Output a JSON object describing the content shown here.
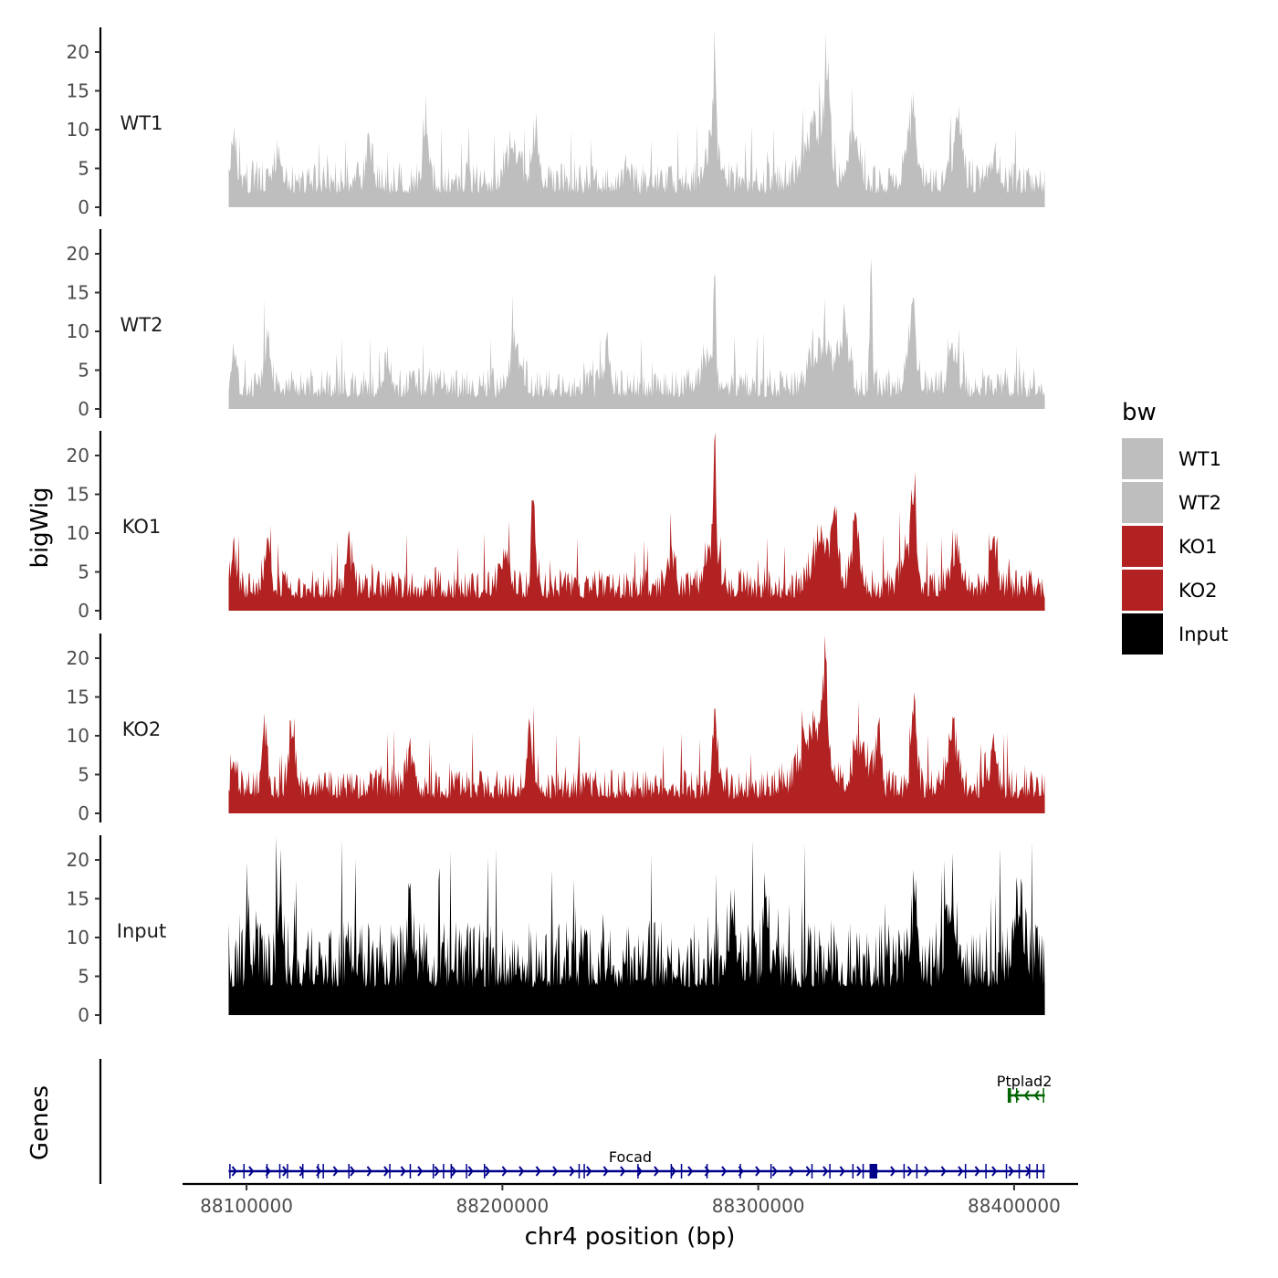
{
  "chart_data": {
    "type": "area",
    "chromosome": "chr4",
    "xlabel": "chr4 position (bp)",
    "ylabel_tracks": "bigWig",
    "ylabel_genes": "Genes",
    "xlim": [
      88075000,
      88425000
    ],
    "signal_range": [
      88093000,
      88412000
    ],
    "x_ticks": [
      88100000,
      88200000,
      88300000,
      88400000
    ],
    "x_tick_labels": [
      "88100000",
      "88200000",
      "88300000",
      "88400000"
    ],
    "ylim": [
      0,
      23
    ],
    "y_ticks": [
      0,
      5,
      10,
      15,
      20
    ],
    "y_tick_labels": [
      "0",
      "5",
      "10",
      "15",
      "20"
    ],
    "legend": {
      "title": "bw",
      "entries": [
        {
          "label": "WT1",
          "color": "#bebebe"
        },
        {
          "label": "WT2",
          "color": "#bebebe"
        },
        {
          "label": "KO1",
          "color": "#b22222"
        },
        {
          "label": "KO2",
          "color": "#b22222"
        },
        {
          "label": "Input",
          "color": "#000000"
        }
      ]
    },
    "series": [
      {
        "name": "WT1",
        "color": "#bebebe",
        "base": 1.8,
        "noise": 2.6,
        "peaks": [
          [
            88095000,
            10.5,
            1500
          ],
          [
            88112000,
            6.5,
            2500
          ],
          [
            88148000,
            7.5,
            2000
          ],
          [
            88170000,
            11.5,
            1500
          ],
          [
            88204000,
            7.5,
            4000
          ],
          [
            88213000,
            9.5,
            2000
          ],
          [
            88283000,
            18.8,
            700
          ],
          [
            88282000,
            9,
            3500
          ],
          [
            88322000,
            11,
            6000
          ],
          [
            88327000,
            16.5,
            1500
          ],
          [
            88337000,
            10,
            3000
          ],
          [
            88360000,
            12.5,
            3000
          ],
          [
            88378000,
            11,
            2500
          ],
          [
            88392000,
            5,
            3000
          ]
        ]
      },
      {
        "name": "WT2",
        "color": "#bebebe",
        "base": 1.5,
        "noise": 2.4,
        "peaks": [
          [
            88095000,
            7,
            1500
          ],
          [
            88108000,
            8.5,
            2000
          ],
          [
            88155000,
            6.5,
            1500
          ],
          [
            88205000,
            7.5,
            3500
          ],
          [
            88241000,
            10,
            1500
          ],
          [
            88283000,
            17.2,
            700
          ],
          [
            88280000,
            8,
            3000
          ],
          [
            88325000,
            8,
            6000
          ],
          [
            88334000,
            10.5,
            2500
          ],
          [
            88344000,
            17.5,
            800
          ],
          [
            88360000,
            13.5,
            2500
          ],
          [
            88376000,
            8.5,
            2500
          ]
        ]
      },
      {
        "name": "KO1",
        "color": "#b22222",
        "base": 1.6,
        "noise": 2.4,
        "peaks": [
          [
            88095000,
            7.5,
            1500
          ],
          [
            88108000,
            8,
            2000
          ],
          [
            88140000,
            9.5,
            1500
          ],
          [
            88201000,
            8,
            2500
          ],
          [
            88212000,
            14.2,
            1200
          ],
          [
            88266000,
            8.5,
            2000
          ],
          [
            88283000,
            21.8,
            600
          ],
          [
            88282000,
            9,
            3500
          ],
          [
            88325000,
            10,
            5000
          ],
          [
            88330000,
            13.5,
            1500
          ],
          [
            88338000,
            11.5,
            2500
          ],
          [
            88361000,
            15.2,
            1500
          ],
          [
            88358000,
            8.5,
            3000
          ],
          [
            88377000,
            9,
            2500
          ],
          [
            88392000,
            9.5,
            1800
          ]
        ]
      },
      {
        "name": "KO2",
        "color": "#b22222",
        "base": 1.9,
        "noise": 2.4,
        "peaks": [
          [
            88095000,
            6.5,
            1500
          ],
          [
            88107000,
            13,
            1500
          ],
          [
            88118000,
            10,
            2000
          ],
          [
            88164000,
            8.5,
            2000
          ],
          [
            88211000,
            10,
            2000
          ],
          [
            88283000,
            13.5,
            1500
          ],
          [
            88322000,
            12,
            7000
          ],
          [
            88326000,
            16.2,
            1200
          ],
          [
            88340000,
            9.5,
            4000
          ],
          [
            88347000,
            11.5,
            1500
          ],
          [
            88361000,
            15.6,
            1500
          ],
          [
            88376000,
            12.5,
            2500
          ],
          [
            88392000,
            8.5,
            2000
          ]
        ]
      },
      {
        "name": "Input",
        "color": "#000000",
        "base": 3.6,
        "noise": 5.4,
        "peaks": [
          [
            88100000,
            16.8,
            400
          ],
          [
            88113000,
            14.5,
            1500
          ],
          [
            88164000,
            12,
            1500
          ],
          [
            88290000,
            12.5,
            2000
          ],
          [
            88303000,
            14,
            1500
          ],
          [
            88361000,
            14,
            2000
          ],
          [
            88376000,
            13.5,
            2500
          ],
          [
            88402000,
            13,
            3000
          ]
        ]
      }
    ],
    "genes": [
      {
        "name": "Focad",
        "label": "Focad",
        "strand": "+",
        "color": "#00008b",
        "start": 88093000,
        "end": 88412000,
        "label_position": 88250000,
        "exons": [
          88093500,
          88099000,
          88108000,
          88113000,
          88116000,
          88122000,
          88128000,
          88130000,
          88140000,
          88156000,
          88164000,
          88173000,
          88177000,
          88180000,
          88186000,
          88193000,
          88230000,
          88232000,
          88253000,
          88266000,
          88270000,
          88280000,
          88293000,
          88305000,
          88321000,
          88328000,
          88337000,
          88341000,
          88344000,
          88357000,
          88362000,
          88381000,
          88389000,
          88397000,
          88402000,
          88406000,
          88409000,
          88411500
        ],
        "blocks": [
          [
            88343500,
            88346500
          ]
        ]
      },
      {
        "name": "Ptplad2",
        "label": "Ptplad2",
        "strand": "-",
        "color": "#006400",
        "start": 88397500,
        "end": 88412000,
        "label_position": 88404000,
        "exons": [
          88398000,
          88401000,
          88411500
        ],
        "blocks": [
          [
            88397500,
            88398800
          ]
        ]
      }
    ]
  }
}
